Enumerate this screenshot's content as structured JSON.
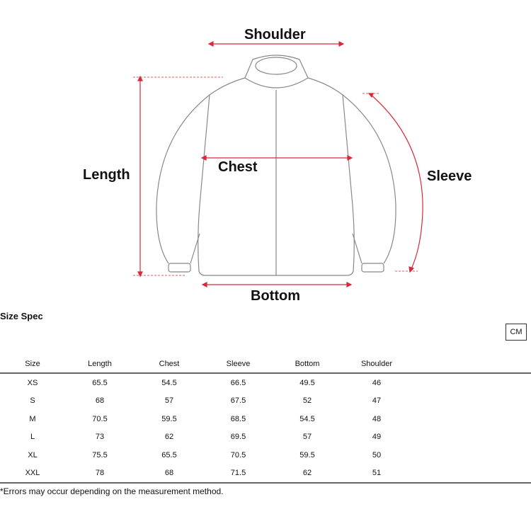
{
  "diagram": {
    "labels": {
      "shoulder": "Shoulder",
      "length": "Length",
      "chest": "Chest",
      "sleeve": "Sleeve",
      "bottom": "Bottom"
    },
    "colors": {
      "measure": "#d9283a",
      "outline": "#888888"
    }
  },
  "size_spec": {
    "title": "Size Spec",
    "unit_button": "CM",
    "headers": [
      "Size",
      "Length",
      "Chest",
      "Sleeve",
      "Bottom",
      "Shoulder"
    ],
    "rows": [
      [
        "XS",
        "65.5",
        "54.5",
        "66.5",
        "49.5",
        "46"
      ],
      [
        "S",
        "68",
        "57",
        "67.5",
        "52",
        "47"
      ],
      [
        "M",
        "70.5",
        "59.5",
        "68.5",
        "54.5",
        "48"
      ],
      [
        "L",
        "73",
        "62",
        "69.5",
        "57",
        "49"
      ],
      [
        "XL",
        "75.5",
        "65.5",
        "70.5",
        "59.5",
        "50"
      ],
      [
        "XXL",
        "78",
        "68",
        "71.5",
        "62",
        "51"
      ]
    ],
    "note": "*Errors may occur depending on the measurement method."
  }
}
